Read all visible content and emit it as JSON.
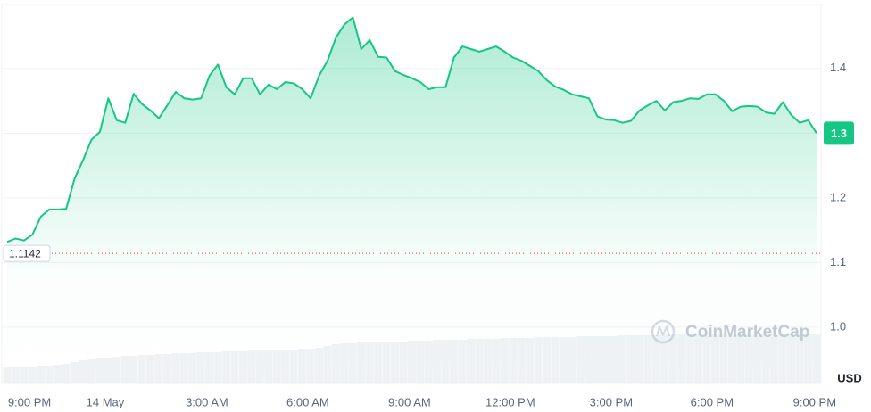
{
  "chart_data": {
    "type": "line",
    "color": "#16c784",
    "values": [
      1.132,
      1.137,
      1.134,
      1.143,
      1.171,
      1.182,
      1.182,
      1.183,
      1.23,
      1.258,
      1.29,
      1.302,
      1.354,
      1.32,
      1.316,
      1.361,
      1.345,
      1.335,
      1.323,
      1.343,
      1.364,
      1.354,
      1.352,
      1.354,
      1.389,
      1.406,
      1.371,
      1.36,
      1.385,
      1.385,
      1.36,
      1.375,
      1.368,
      1.379,
      1.377,
      1.368,
      1.354,
      1.389,
      1.412,
      1.448,
      1.468,
      1.479,
      1.43,
      1.444,
      1.418,
      1.417,
      1.396,
      1.39,
      1.385,
      1.379,
      1.368,
      1.371,
      1.371,
      1.417,
      1.434,
      1.43,
      1.426,
      1.43,
      1.434,
      1.426,
      1.417,
      1.412,
      1.404,
      1.396,
      1.382,
      1.372,
      1.367,
      1.36,
      1.357,
      1.354,
      1.326,
      1.321,
      1.32,
      1.316,
      1.319,
      1.335,
      1.343,
      1.35,
      1.335,
      1.348,
      1.35,
      1.354,
      1.353,
      1.36,
      1.36,
      1.35,
      1.334,
      1.341,
      1.342,
      1.341,
      1.332,
      1.33,
      1.348,
      1.328,
      1.316,
      1.32,
      1.3
    ],
    "volume": [
      18,
      18,
      19,
      19,
      20,
      20,
      21,
      22,
      24,
      26,
      27,
      28,
      29,
      30,
      31,
      31,
      32,
      32,
      33,
      33,
      34,
      34,
      34,
      35,
      35,
      35,
      36,
      36,
      36,
      37,
      37,
      37,
      38,
      38,
      38,
      39,
      39,
      40,
      42,
      44,
      45,
      45,
      46,
      46,
      46,
      47,
      47,
      47,
      48,
      48,
      48,
      49,
      49,
      49,
      49,
      50,
      50,
      50,
      50,
      51,
      51,
      51,
      51,
      52,
      52,
      52,
      52,
      52,
      53,
      53,
      53,
      53,
      53,
      54,
      54,
      54,
      54,
      54,
      55,
      55,
      55,
      55,
      55,
      55,
      55,
      56,
      56,
      56,
      56,
      56,
      56,
      56,
      56,
      56,
      56,
      56,
      56
    ],
    "volume_ylim": [
      0,
      100
    ],
    "xlim": [
      0,
      96
    ],
    "xticks": [
      {
        "value": 2.65,
        "label": "9:00 PM"
      },
      {
        "value": 11.64,
        "label": "14 May"
      },
      {
        "value": 23.7,
        "label": "3:00 AM"
      },
      {
        "value": 35.66,
        "label": "6:00 AM"
      },
      {
        "value": 47.72,
        "label": "9:00 AM"
      },
      {
        "value": 59.68,
        "label": "12:00 PM"
      },
      {
        "value": 71.64,
        "label": "3:00 PM"
      },
      {
        "value": 83.6,
        "label": "6:00 PM"
      },
      {
        "value": 95.77,
        "label": "9:00 PM"
      }
    ],
    "ylim": [
      0.913,
      1.499
    ],
    "yticks": [
      1.4,
      1.3,
      1.2,
      1.1,
      {
        "value": 1,
        "label": "1.0"
      }
    ],
    "grid": true,
    "open_price": 1.1142,
    "current_price": 1.3,
    "currency": "USD",
    "watermark": "CoinMarketCap"
  }
}
